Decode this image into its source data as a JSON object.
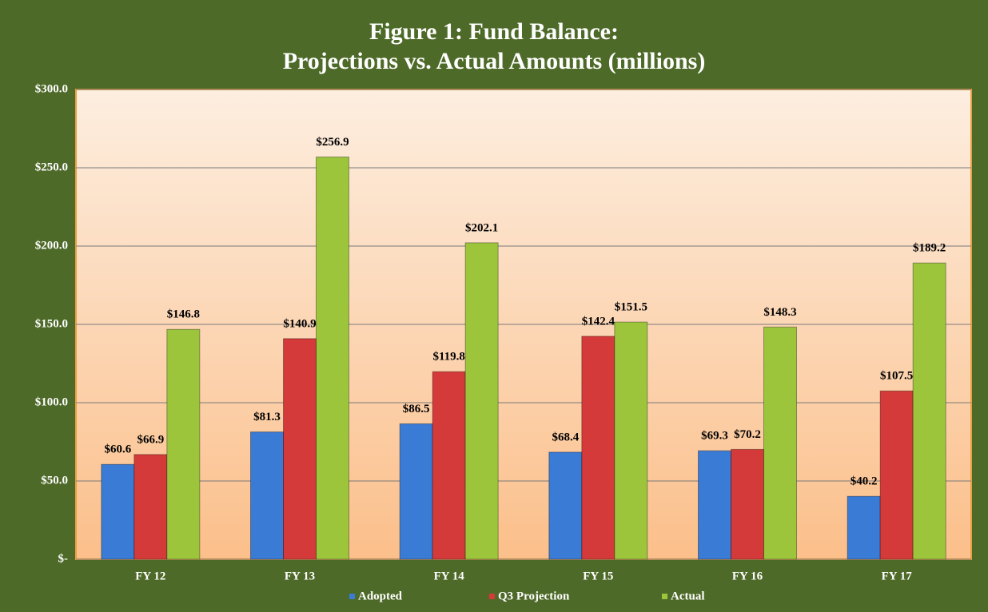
{
  "chart_data": {
    "type": "bar",
    "title": "Figure 1: Fund Balance:",
    "subtitle": "Projections vs. Actual Amounts (millions)",
    "categories": [
      "FY 12",
      "FY 13",
      "FY 14",
      "FY 15",
      "FY 16",
      "FY 17"
    ],
    "series": [
      {
        "name": "Adopted",
        "color": "#3a7bd5",
        "values": [
          60.6,
          81.3,
          86.5,
          68.4,
          69.3,
          40.2
        ],
        "value_labels": [
          "$60.6",
          "$81.3",
          "$86.5",
          "$68.4",
          "$69.3",
          "$40.2"
        ]
      },
      {
        "name": "Q3 Projection",
        "color": "#d43a3a",
        "values": [
          66.9,
          140.9,
          119.8,
          142.4,
          70.2,
          107.5
        ],
        "value_labels": [
          "$66.9",
          "$140.9",
          "$119.8",
          "$142.4",
          "$70.2",
          "$107.5"
        ]
      },
      {
        "name": "Actual",
        "color": "#9cc53c",
        "values": [
          146.8,
          256.9,
          202.1,
          151.5,
          148.3,
          189.2
        ],
        "value_labels": [
          "$146.8",
          "$256.9",
          "$202.1",
          "$151.5",
          "$148.3",
          "$189.2"
        ]
      }
    ],
    "ylim": [
      0,
      300
    ],
    "yticks": [
      {
        "value": 0,
        "label": "$-"
      },
      {
        "value": 50,
        "label": "$50.0"
      },
      {
        "value": 100,
        "label": "$100.0"
      },
      {
        "value": 150,
        "label": "$150.0"
      },
      {
        "value": 200,
        "label": "$200.0"
      },
      {
        "value": 250,
        "label": "$250.0"
      },
      {
        "value": 300,
        "label": "$300.0"
      }
    ],
    "grid": true,
    "legend": "bottom"
  }
}
